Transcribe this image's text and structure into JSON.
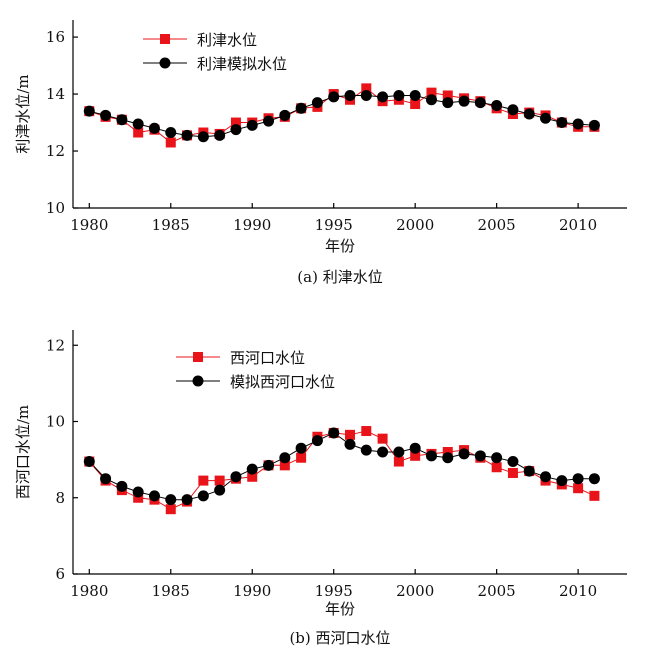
{
  "chart_data": [
    {
      "type": "line",
      "caption": "(a) 利津水位",
      "xlabel": "年份",
      "ylabel": "利津水位/m",
      "xlim": [
        1979,
        2013
      ],
      "ylim": [
        10,
        16.6
      ],
      "xticks": [
        1980,
        1985,
        1990,
        1995,
        2000,
        2005,
        2010
      ],
      "yticks": [
        10,
        12,
        14,
        16
      ],
      "legend_position": "top-left",
      "grid": false,
      "x": [
        1980,
        1981,
        1982,
        1983,
        1984,
        1985,
        1986,
        1987,
        1988,
        1989,
        1990,
        1991,
        1992,
        1993,
        1994,
        1995,
        1996,
        1997,
        1998,
        1999,
        2000,
        2001,
        2002,
        2003,
        2004,
        2005,
        2006,
        2007,
        2008,
        2009,
        2010,
        2011
      ],
      "series": [
        {
          "name": "利津水位",
          "marker": "square",
          "color": "#e8141a",
          "values": [
            13.4,
            13.2,
            13.1,
            12.65,
            12.75,
            12.3,
            12.55,
            12.65,
            12.6,
            13.0,
            13.0,
            13.15,
            13.2,
            13.5,
            13.55,
            14.0,
            13.8,
            14.2,
            13.75,
            13.8,
            13.65,
            14.05,
            13.95,
            13.85,
            13.75,
            13.5,
            13.3,
            13.35,
            13.25,
            13.0,
            12.85,
            12.85
          ]
        },
        {
          "name": "利津模拟水位",
          "marker": "circle",
          "color": "#000000",
          "values": [
            13.4,
            13.25,
            13.1,
            12.95,
            12.8,
            12.65,
            12.55,
            12.5,
            12.55,
            12.75,
            12.9,
            13.05,
            13.25,
            13.5,
            13.7,
            13.9,
            13.95,
            13.95,
            13.9,
            13.95,
            13.95,
            13.8,
            13.7,
            13.75,
            13.7,
            13.6,
            13.45,
            13.3,
            13.15,
            13.0,
            12.95,
            12.9
          ]
        }
      ]
    },
    {
      "type": "line",
      "caption": "(b) 西河口水位",
      "xlabel": "年份",
      "ylabel": "西河口水位/m",
      "xlim": [
        1979,
        2013
      ],
      "ylim": [
        6,
        12.4
      ],
      "xticks": [
        1980,
        1985,
        1990,
        1995,
        2000,
        2005,
        2010
      ],
      "yticks": [
        6,
        8,
        10,
        12
      ],
      "legend_position": "top-left",
      "grid": false,
      "x": [
        1980,
        1981,
        1982,
        1983,
        1984,
        1985,
        1986,
        1987,
        1988,
        1989,
        1990,
        1991,
        1992,
        1993,
        1994,
        1995,
        1996,
        1997,
        1998,
        1999,
        2000,
        2001,
        2002,
        2003,
        2004,
        2005,
        2006,
        2007,
        2008,
        2009,
        2010,
        2011
      ],
      "series": [
        {
          "name": "西河口水位",
          "marker": "square",
          "color": "#e8141a",
          "values": [
            8.95,
            8.45,
            8.2,
            8.0,
            7.95,
            7.7,
            7.9,
            8.45,
            8.45,
            8.5,
            8.55,
            8.85,
            8.85,
            9.05,
            9.6,
            9.7,
            9.65,
            9.75,
            9.55,
            8.95,
            9.1,
            9.15,
            9.2,
            9.25,
            9.05,
            8.8,
            8.65,
            8.7,
            8.45,
            8.35,
            8.25,
            8.05
          ]
        },
        {
          "name": "模拟西河口水位",
          "marker": "circle",
          "color": "#000000",
          "values": [
            8.95,
            8.5,
            8.3,
            8.15,
            8.05,
            7.95,
            7.95,
            8.05,
            8.2,
            8.55,
            8.75,
            8.85,
            9.05,
            9.3,
            9.5,
            9.7,
            9.4,
            9.25,
            9.2,
            9.2,
            9.3,
            9.1,
            9.05,
            9.15,
            9.1,
            9.05,
            8.95,
            8.7,
            8.55,
            8.45,
            8.5,
            8.5
          ]
        }
      ]
    }
  ]
}
